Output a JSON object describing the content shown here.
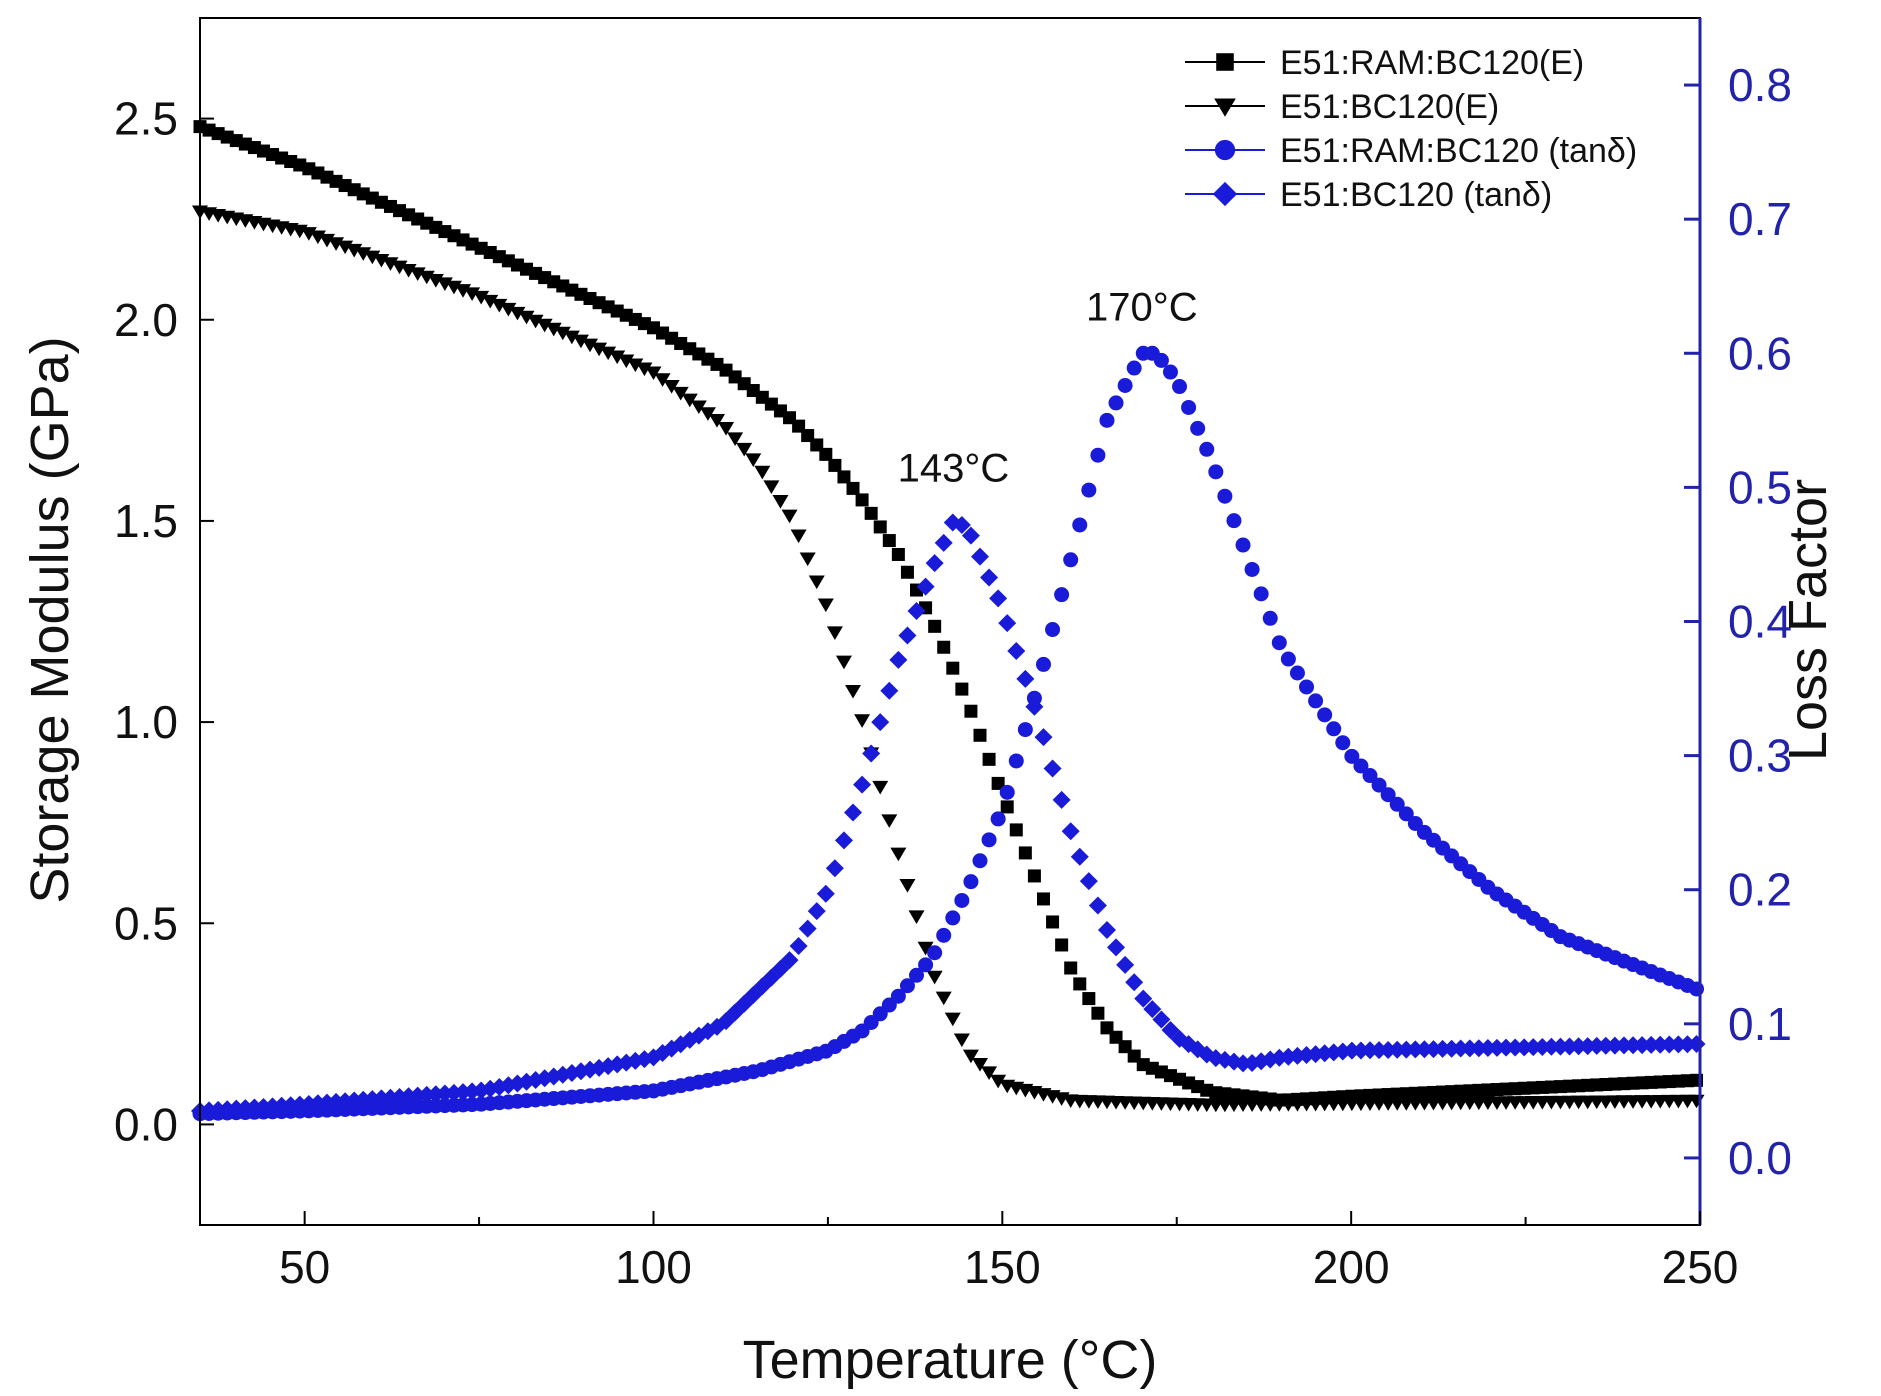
{
  "chart_data": {
    "type": "scatter",
    "title": "",
    "xlabel": "Temperature (°C)",
    "ylabel_left": "Storage Modulus (GPa)",
    "ylabel_right": "Loss Factor",
    "xlim": [
      35,
      250
    ],
    "ylim_left": [
      -0.25,
      2.75
    ],
    "ylim_right": [
      -0.05,
      0.85
    ],
    "x_ticks": [
      50,
      100,
      150,
      200,
      250
    ],
    "y_ticks_left": [
      "0.0",
      "0.5",
      "1.0",
      "1.5",
      "2.0",
      "2.5"
    ],
    "y_ticks_right": [
      "0.0",
      "0.1",
      "0.2",
      "0.3",
      "0.4",
      "0.5",
      "0.6",
      "0.7",
      "0.8"
    ],
    "colors": {
      "modulus": "#000000",
      "tan_delta": "#1a1ad9",
      "right_axis": "#2222aa"
    },
    "legend_position": "top-right",
    "series": [
      {
        "name": "E51:RAM:BC120(E)",
        "axis": "left",
        "marker": "square",
        "x": [
          35,
          50,
          75,
          100,
          110,
          120,
          125,
          130,
          135,
          140,
          145,
          150,
          155,
          160,
          165,
          170,
          180,
          190,
          200,
          250
        ],
        "y": [
          2.48,
          2.38,
          2.18,
          1.98,
          1.88,
          1.75,
          1.66,
          1.55,
          1.42,
          1.25,
          1.05,
          0.82,
          0.6,
          0.38,
          0.24,
          0.15,
          0.08,
          0.06,
          0.07,
          0.11
        ]
      },
      {
        "name": "E51:BC120(E)",
        "axis": "left",
        "marker": "triangle-down",
        "x": [
          35,
          50,
          75,
          100,
          110,
          115,
          120,
          125,
          130,
          135,
          140,
          145,
          150,
          160,
          180,
          250
        ],
        "y": [
          2.27,
          2.22,
          2.06,
          1.87,
          1.74,
          1.64,
          1.5,
          1.28,
          1.0,
          0.68,
          0.38,
          0.18,
          0.1,
          0.06,
          0.05,
          0.06
        ]
      },
      {
        "name": "E51:RAM:BC120 (tanδ)",
        "axis": "right",
        "marker": "circle",
        "x": [
          35,
          50,
          75,
          100,
          115,
          125,
          130,
          135,
          140,
          145,
          150,
          155,
          160,
          165,
          170,
          172,
          175,
          180,
          185,
          190,
          200,
          210,
          220,
          230,
          240,
          250
        ],
        "y": [
          0.033,
          0.035,
          0.04,
          0.05,
          0.065,
          0.08,
          0.095,
          0.12,
          0.15,
          0.2,
          0.26,
          0.35,
          0.45,
          0.55,
          0.6,
          0.6,
          0.58,
          0.52,
          0.45,
          0.38,
          0.3,
          0.245,
          0.2,
          0.165,
          0.145,
          0.125
        ]
      },
      {
        "name": "E51:BC120 (tanδ)",
        "axis": "right",
        "marker": "diamond",
        "x": [
          35,
          50,
          75,
          100,
          110,
          120,
          125,
          130,
          135,
          140,
          143,
          145,
          150,
          155,
          160,
          165,
          170,
          175,
          180,
          185,
          190,
          200,
          250
        ],
        "y": [
          0.035,
          0.04,
          0.05,
          0.075,
          0.1,
          0.15,
          0.2,
          0.28,
          0.37,
          0.44,
          0.475,
          0.47,
          0.41,
          0.33,
          0.24,
          0.17,
          0.12,
          0.09,
          0.075,
          0.07,
          0.075,
          0.08,
          0.085
        ]
      }
    ],
    "annotations": [
      {
        "text": "143°C",
        "x": 143,
        "y": 0.5,
        "axis": "right"
      },
      {
        "text": "170°C",
        "x": 170,
        "y": 0.62,
        "axis": "right"
      }
    ]
  }
}
